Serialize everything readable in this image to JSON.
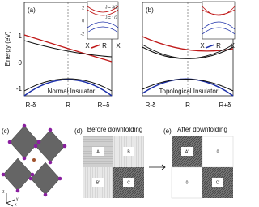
{
  "panel_a": {
    "label": "(a)",
    "y_axis_label": "Energy (eV)",
    "y_ticks": [
      "1",
      "0",
      "-1"
    ],
    "x_ticks": [
      "R-δ",
      "R",
      "R+δ"
    ],
    "caption": "Normal Insulator",
    "inset": {
      "y_ticks": [
        "2",
        "0",
        "-2"
      ],
      "x_ticks": [
        "X",
        "R",
        "X"
      ],
      "annotations": [
        "J = 3/2",
        "J = 1/2"
      ]
    }
  },
  "panel_b": {
    "label": "(b)",
    "x_ticks": [
      "R-δ",
      "R",
      "R+δ"
    ],
    "caption": "Topological Insulator",
    "inset": {
      "x_ticks": [
        "X",
        "R",
        "X"
      ]
    }
  },
  "panel_c": {
    "label": "(c)",
    "axes": [
      "z",
      "y",
      "x"
    ]
  },
  "panel_d": {
    "label": "(d)",
    "title": "Before downfolding",
    "blocks": [
      "A",
      "B",
      "B'",
      "C"
    ]
  },
  "panel_e": {
    "label": "(e)",
    "title": "After downfolding",
    "blocks": [
      "A'",
      "0",
      "0",
      "C'"
    ]
  }
}
